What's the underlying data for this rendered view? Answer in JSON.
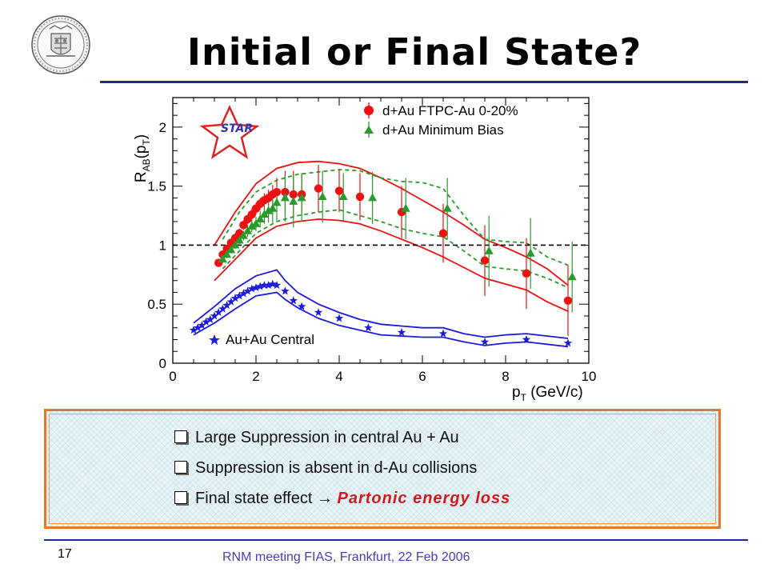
{
  "slide": {
    "title": "Initial or Final State?",
    "slide_number": "17",
    "footer": "RNM meeting FIAS, Frankfurt, 22 Feb 2006",
    "seal_icon": "university-seal-icon",
    "bullet_color_highlight": "#d21a1a",
    "border_color": "#e07a2e",
    "rule_color": "#1a2a9a",
    "bullets": [
      {
        "text": "Large Suppression in central Au + Au",
        "tail": "",
        "highlight": ""
      },
      {
        "text": "Suppression is absent in d-Au collisions",
        "tail": "",
        "highlight": ""
      },
      {
        "text": "Final state effect ",
        "tail": "→ ",
        "highlight": "Partonic energy loss"
      }
    ]
  },
  "chart_data": {
    "type": "scatter",
    "logo_text": "STAR",
    "ylabel": "R_AB(p_T)",
    "xlabel": "p_T (GeV/c)",
    "xlim": [
      0,
      10
    ],
    "ylim": [
      0,
      2.25
    ],
    "xticks": [
      "0",
      "2",
      "4",
      "6",
      "8",
      "10"
    ],
    "yticks": [
      "0",
      "0.5",
      "1",
      "1.5",
      "2"
    ],
    "reference_line": 1,
    "legend_top": [
      "d+Au FTPC-Au 0-20%",
      "d+Au Minimum Bias"
    ],
    "legend_bottom": "Au+Au Central",
    "series": [
      {
        "name": "d+Au FTPC-Au 0-20%",
        "marker": "circle",
        "color": "#ee1111",
        "x": [
          1.1,
          1.2,
          1.3,
          1.4,
          1.5,
          1.6,
          1.7,
          1.8,
          1.9,
          2.0,
          2.1,
          2.2,
          2.3,
          2.4,
          2.5,
          2.7,
          2.9,
          3.1,
          3.5,
          4.0,
          4.5,
          5.5,
          6.5,
          7.5,
          8.5,
          9.5
        ],
        "y": [
          0.85,
          0.92,
          0.97,
          1.02,
          1.06,
          1.1,
          1.17,
          1.22,
          1.26,
          1.31,
          1.35,
          1.38,
          1.4,
          1.43,
          1.45,
          1.45,
          1.43,
          1.43,
          1.48,
          1.46,
          1.41,
          1.28,
          1.1,
          0.87,
          0.76,
          0.53
        ],
        "err": [
          0.03,
          0.03,
          0.03,
          0.03,
          0.04,
          0.04,
          0.04,
          0.04,
          0.05,
          0.05,
          0.05,
          0.06,
          0.07,
          0.08,
          0.12,
          0.18,
          0.2,
          0.18,
          0.2,
          0.18,
          0.2,
          0.22,
          0.25,
          0.3,
          0.3,
          0.3
        ],
        "band_upper": [
          [
            1.0,
            1.0
          ],
          [
            1.5,
            1.28
          ],
          [
            2.0,
            1.52
          ],
          [
            2.5,
            1.65
          ],
          [
            3.0,
            1.7
          ],
          [
            3.5,
            1.71
          ],
          [
            4.0,
            1.69
          ],
          [
            4.5,
            1.65
          ],
          [
            5.0,
            1.57
          ],
          [
            5.5,
            1.48
          ],
          [
            6.0,
            1.38
          ],
          [
            6.5,
            1.28
          ],
          [
            7.0,
            1.17
          ],
          [
            7.5,
            1.05
          ],
          [
            8.0,
            0.98
          ],
          [
            8.5,
            0.9
          ],
          [
            9.0,
            0.8
          ],
          [
            9.5,
            0.66
          ]
        ],
        "band_lower": [
          [
            1.0,
            0.7
          ],
          [
            1.5,
            0.88
          ],
          [
            2.0,
            1.06
          ],
          [
            2.5,
            1.16
          ],
          [
            3.0,
            1.2
          ],
          [
            3.5,
            1.22
          ],
          [
            4.0,
            1.21
          ],
          [
            4.5,
            1.18
          ],
          [
            5.0,
            1.12
          ],
          [
            5.5,
            1.05
          ],
          [
            6.0,
            0.98
          ],
          [
            6.5,
            0.9
          ],
          [
            7.0,
            0.81
          ],
          [
            7.5,
            0.72
          ],
          [
            8.0,
            0.67
          ],
          [
            8.5,
            0.62
          ],
          [
            9.0,
            0.52
          ],
          [
            9.5,
            0.44
          ]
        ]
      },
      {
        "name": "d+Au Minimum Bias",
        "marker": "triangle",
        "color": "#2a9a2a",
        "x": [
          1.2,
          1.3,
          1.4,
          1.5,
          1.6,
          1.7,
          1.8,
          1.9,
          2.0,
          2.1,
          2.2,
          2.3,
          2.4,
          2.5,
          2.7,
          2.9,
          3.1,
          3.6,
          4.1,
          4.8,
          5.6,
          6.6,
          7.6,
          8.6,
          9.6
        ],
        "y": [
          0.88,
          0.92,
          0.96,
          1.0,
          1.04,
          1.08,
          1.12,
          1.16,
          1.18,
          1.22,
          1.26,
          1.29,
          1.31,
          1.36,
          1.4,
          1.37,
          1.4,
          1.41,
          1.41,
          1.4,
          1.31,
          1.31,
          0.95,
          0.93,
          0.73
        ],
        "err": [
          0.03,
          0.03,
          0.03,
          0.03,
          0.04,
          0.04,
          0.05,
          0.05,
          0.06,
          0.07,
          0.08,
          0.1,
          0.12,
          0.15,
          0.2,
          0.22,
          0.2,
          0.22,
          0.2,
          0.22,
          0.26,
          0.26,
          0.3,
          0.3,
          0.3
        ],
        "band_upper": [
          [
            1.2,
            1.05
          ],
          [
            1.6,
            1.28
          ],
          [
            2.0,
            1.45
          ],
          [
            2.5,
            1.55
          ],
          [
            3.0,
            1.6
          ],
          [
            3.5,
            1.62
          ],
          [
            4.0,
            1.64
          ],
          [
            4.5,
            1.63
          ],
          [
            5.0,
            1.57
          ],
          [
            5.5,
            1.54
          ],
          [
            6.0,
            1.53
          ],
          [
            6.5,
            1.48
          ],
          [
            7.0,
            1.25
          ],
          [
            7.5,
            1.05
          ],
          [
            8.0,
            1.03
          ],
          [
            8.5,
            1.02
          ],
          [
            9.0,
            0.9
          ],
          [
            9.5,
            0.83
          ]
        ],
        "band_lower": [
          [
            1.2,
            0.8
          ],
          [
            1.6,
            0.95
          ],
          [
            2.0,
            1.1
          ],
          [
            2.5,
            1.2
          ],
          [
            3.0,
            1.25
          ],
          [
            3.5,
            1.28
          ],
          [
            4.0,
            1.3
          ],
          [
            4.5,
            1.25
          ],
          [
            5.0,
            1.2
          ],
          [
            5.5,
            1.14
          ],
          [
            6.0,
            1.1
          ],
          [
            6.5,
            1.07
          ],
          [
            7.0,
            0.95
          ],
          [
            7.5,
            0.82
          ],
          [
            8.0,
            0.8
          ],
          [
            8.5,
            0.78
          ],
          [
            9.0,
            0.72
          ],
          [
            9.5,
            0.64
          ]
        ]
      },
      {
        "name": "Au+Au Central",
        "marker": "star",
        "color": "#1a1ae0",
        "x": [
          0.5,
          0.6,
          0.7,
          0.8,
          0.9,
          1.0,
          1.1,
          1.2,
          1.3,
          1.4,
          1.5,
          1.6,
          1.7,
          1.8,
          1.9,
          2.0,
          2.1,
          2.2,
          2.3,
          2.4,
          2.5,
          2.7,
          2.9,
          3.1,
          3.5,
          4.0,
          4.7,
          5.5,
          6.5,
          7.5,
          8.5,
          9.5
        ],
        "y": [
          0.28,
          0.3,
          0.32,
          0.35,
          0.37,
          0.4,
          0.43,
          0.46,
          0.49,
          0.52,
          0.55,
          0.57,
          0.59,
          0.61,
          0.63,
          0.64,
          0.65,
          0.66,
          0.66,
          0.67,
          0.66,
          0.61,
          0.53,
          0.48,
          0.43,
          0.38,
          0.3,
          0.26,
          0.25,
          0.18,
          0.2,
          0.17
        ],
        "band_upper": [
          [
            0.5,
            0.34
          ],
          [
            1.0,
            0.48
          ],
          [
            1.5,
            0.63
          ],
          [
            2.0,
            0.74
          ],
          [
            2.5,
            0.79
          ],
          [
            2.7,
            0.7
          ],
          [
            3.0,
            0.6
          ],
          [
            3.5,
            0.5
          ],
          [
            4.0,
            0.43
          ],
          [
            4.5,
            0.37
          ],
          [
            5.0,
            0.33
          ],
          [
            6.0,
            0.3
          ],
          [
            6.5,
            0.3
          ],
          [
            7.0,
            0.25
          ],
          [
            7.5,
            0.22
          ],
          [
            8.0,
            0.24
          ],
          [
            8.5,
            0.25
          ],
          [
            9.5,
            0.21
          ]
        ],
        "band_lower": [
          [
            0.5,
            0.24
          ],
          [
            1.0,
            0.34
          ],
          [
            1.5,
            0.46
          ],
          [
            2.0,
            0.57
          ],
          [
            2.5,
            0.6
          ],
          [
            2.7,
            0.54
          ],
          [
            3.0,
            0.47
          ],
          [
            3.5,
            0.38
          ],
          [
            4.0,
            0.32
          ],
          [
            4.5,
            0.28
          ],
          [
            5.0,
            0.24
          ],
          [
            6.0,
            0.22
          ],
          [
            6.5,
            0.22
          ],
          [
            7.0,
            0.18
          ],
          [
            7.5,
            0.15
          ],
          [
            8.0,
            0.17
          ],
          [
            8.5,
            0.18
          ],
          [
            9.5,
            0.14
          ]
        ]
      }
    ]
  }
}
